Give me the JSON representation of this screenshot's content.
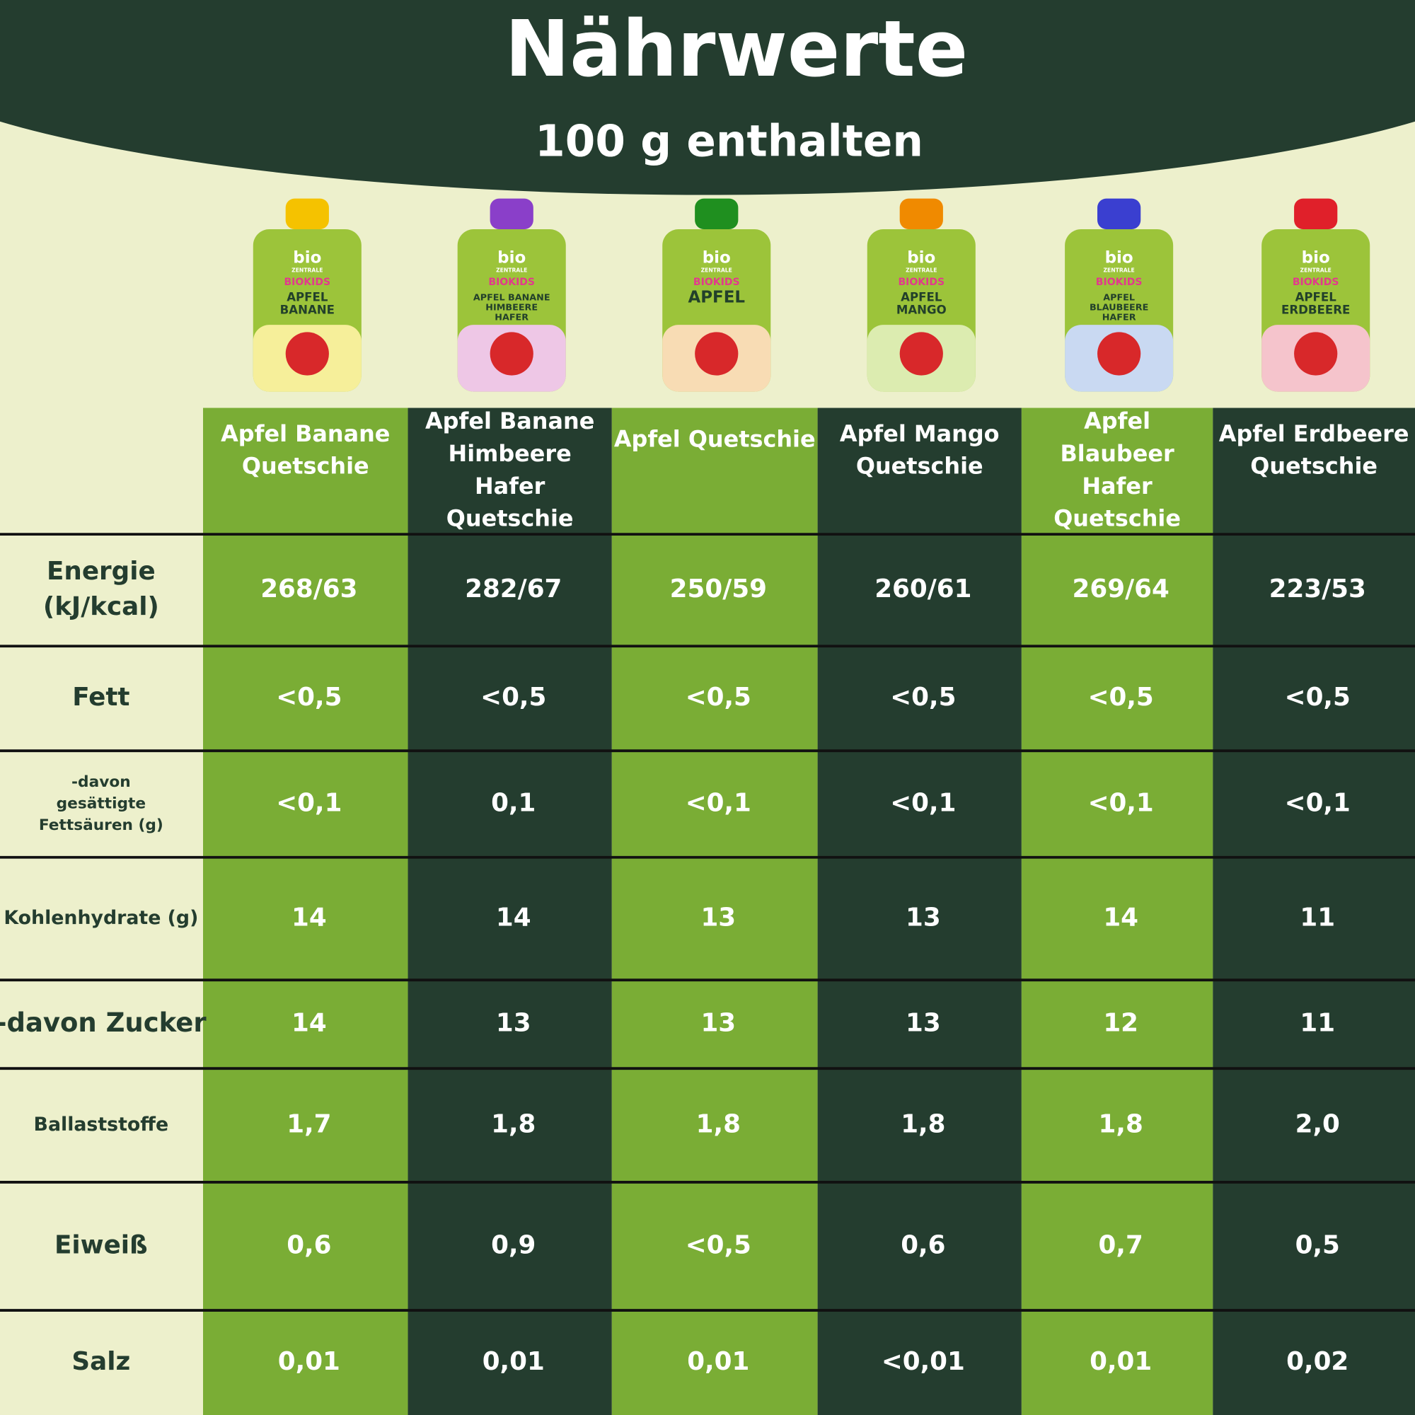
{
  "header": {
    "title": "Nährwerte",
    "subtitle": "100 g enthalten"
  },
  "brand": {
    "name": "bio",
    "sub": "ZENTRALE",
    "line": "BIOKIDS"
  },
  "pouches": [
    [
      "APFEL",
      "BANANE"
    ],
    [
      "APFEL BANANE",
      "HIMBEERE",
      "HAFER"
    ],
    [
      "APFEL"
    ],
    [
      "APFEL",
      "MANGO"
    ],
    [
      "APFEL",
      "BLAUBEERE",
      "HAFER"
    ],
    [
      "APFEL",
      "ERDBEERE"
    ]
  ],
  "table": {
    "columns": [
      [
        "Apfel Banane",
        "Quetschie"
      ],
      [
        "Apfel Banane",
        "Himbeere",
        "Hafer",
        "Quetschie"
      ],
      [
        "Apfel Quetschie"
      ],
      [
        "Apfel Mango",
        "Quetschie"
      ],
      [
        "Apfel",
        "Blaubeer",
        "Hafer",
        "Quetschie"
      ],
      [
        "Apfel Erdbeere",
        "Quetschie"
      ]
    ],
    "rows": [
      {
        "label": [
          "Energie",
          "(kJ/kcal)"
        ],
        "cells": [
          "268/63",
          "282/67",
          "250/59",
          "260/61",
          "269/64",
          "223/53"
        ]
      },
      {
        "label": [
          "Fett"
        ],
        "cells": [
          "<0,5",
          "<0,5",
          "<0,5",
          "<0,5",
          "<0,5",
          "<0,5"
        ]
      },
      {
        "label": [
          "-davon",
          "gesättigte",
          "Fettsäuren (g)"
        ],
        "cells": [
          "<0,1",
          "0,1",
          "<0,1",
          "<0,1",
          "<0,1",
          "<0,1"
        ]
      },
      {
        "label": [
          "Kohlenhydrate (g)"
        ],
        "cells": [
          "14",
          "14",
          "13",
          "13",
          "14",
          "11"
        ]
      },
      {
        "label": [
          "-davon Zucker"
        ],
        "cells": [
          "14",
          "13",
          "13",
          "13",
          "12",
          "11"
        ]
      },
      {
        "label": [
          "Ballaststoffe"
        ],
        "cells": [
          "1,7",
          "1,8",
          "1,8",
          "1,8",
          "1,8",
          "2,0"
        ]
      },
      {
        "label": [
          "Eiweiß"
        ],
        "cells": [
          "0,6",
          "0,9",
          "<0,5",
          "0,6",
          "0,7",
          "0,5"
        ]
      },
      {
        "label": [
          "Salz"
        ],
        "cells": [
          "0,01",
          "0,01",
          "0,01",
          "<0,01",
          "0,01",
          "0,02"
        ]
      }
    ]
  }
}
